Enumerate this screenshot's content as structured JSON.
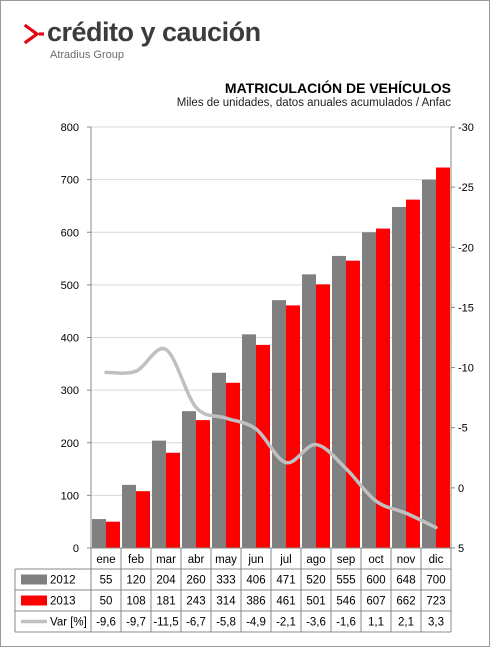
{
  "brand": {
    "name": "crédito y caución",
    "group": "Atradius Group",
    "mark_color": "#e30613"
  },
  "chart_data": {
    "type": "bar",
    "title": "MATRICULACIÓN DE VEHÍCULOS",
    "subtitle": "Miles de unidades, datos anuales acumulados / Anfac",
    "categories": [
      "ene",
      "feb",
      "mar",
      "abr",
      "may",
      "jun",
      "jul",
      "ago",
      "sep",
      "oct",
      "nov",
      "dic"
    ],
    "series": [
      {
        "name": "2012",
        "type": "bar",
        "color": "#808080",
        "values": [
          55,
          120,
          204,
          260,
          333,
          406,
          471,
          520,
          555,
          600,
          648,
          700
        ]
      },
      {
        "name": "2013",
        "type": "bar",
        "color": "#ff0000",
        "values": [
          50,
          108,
          181,
          243,
          314,
          386,
          461,
          501,
          546,
          607,
          662,
          723
        ]
      },
      {
        "name": "Var [%]",
        "type": "line",
        "color": "#c0c0c0",
        "axis": "right",
        "values": [
          -9.6,
          -9.7,
          -11.5,
          -6.7,
          -5.8,
          -4.9,
          -2.1,
          -3.6,
          -1.6,
          1.1,
          2.1,
          3.3
        ],
        "labels": [
          "-9,6",
          "-9,7",
          "-11,5",
          "-6,7",
          "-5,8",
          "-4,9",
          "-2,1",
          "-3,6",
          "-1,6",
          "1,1",
          "2,1",
          "3,3"
        ]
      }
    ],
    "y_left": {
      "min": 0,
      "max": 800,
      "ticks": [
        0,
        100,
        200,
        300,
        400,
        500,
        600,
        700,
        800
      ]
    },
    "y_right": {
      "min": -30,
      "max": 5,
      "inverted": true,
      "ticks": [
        -30,
        -25,
        -20,
        -15,
        -10,
        -5,
        0,
        5
      ],
      "tick_labels": [
        "-30",
        "-25",
        "-20",
        "-15",
        "-10",
        "-5",
        "0",
        "5"
      ]
    },
    "data_table": true,
    "grid": true
  }
}
